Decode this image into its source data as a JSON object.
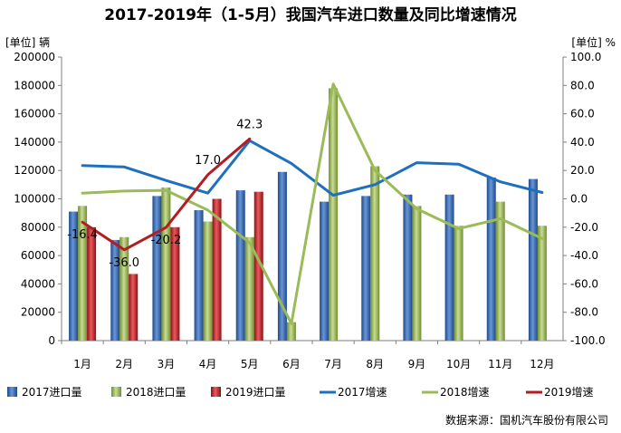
{
  "title": "2017-2019年（1-5月）我国汽车进口数量及同比增速情况",
  "unit_left": "[单位] 辆",
  "unit_right": "[单位] %",
  "source": "数据来源：国机汽车股份有限公司",
  "colors": {
    "bar2017": "#2f5fa8",
    "bar2018": "#9bbb59",
    "bar2019": "#c0191f",
    "line2017": "#1f6fbf",
    "line2018": "#9bbb59",
    "line2019": "#b01e23",
    "grid": "#d9d9d9"
  },
  "chart_data": {
    "type": "bar",
    "title": "2017-2019年（1-5月）我国汽车进口数量及同比增速情况",
    "categories": [
      "1月",
      "2月",
      "3月",
      "4月",
      "5月",
      "6月",
      "7月",
      "8月",
      "9月",
      "10月",
      "11月",
      "12月"
    ],
    "ylim": [
      0,
      200000
    ],
    "yticks": [
      "0",
      "20000",
      "40000",
      "60000",
      "80000",
      "100000",
      "120000",
      "140000",
      "160000",
      "180000",
      "200000"
    ],
    "y2lim": [
      -100,
      100
    ],
    "y2ticks": [
      "-100.0",
      "-80.0",
      "-60.0",
      "-40.0",
      "-20.0",
      "0.0",
      "20.0",
      "40.0",
      "60.0",
      "80.0",
      "100.0"
    ],
    "series": [
      {
        "name": "2017进口量",
        "type": "bar",
        "axis": "left",
        "values": [
          91000,
          71000,
          102000,
          92000,
          106000,
          119000,
          98000,
          102000,
          103000,
          103000,
          115000,
          114000
        ]
      },
      {
        "name": "2018进口量",
        "type": "bar",
        "axis": "left",
        "values": [
          95000,
          73000,
          108000,
          84000,
          73000,
          13000,
          178000,
          123000,
          95000,
          81000,
          98000,
          81000
        ]
      },
      {
        "name": "2019进口量",
        "type": "bar",
        "axis": "left",
        "values": [
          80000,
          47000,
          80000,
          100000,
          105000,
          null,
          null,
          null,
          null,
          null,
          null,
          null
        ]
      },
      {
        "name": "2017增速",
        "type": "line",
        "axis": "right",
        "values": [
          23.5,
          22.5,
          13.0,
          4.0,
          41.0,
          25.0,
          2.5,
          10.0,
          25.5,
          24.5,
          12.0,
          4.5
        ]
      },
      {
        "name": "2018增速",
        "type": "line",
        "axis": "right",
        "values": [
          4.0,
          5.5,
          6.0,
          -8.0,
          -31.0,
          -88.0,
          81.0,
          20.0,
          -7.0,
          -21.0,
          -14.0,
          -28.0
        ]
      },
      {
        "name": "2019增速",
        "type": "line",
        "axis": "right",
        "values": [
          -16.4,
          -36.0,
          -20.2,
          17.0,
          42.3,
          null,
          null,
          null,
          null,
          null,
          null,
          null
        ]
      }
    ],
    "data_labels": [
      {
        "series": "2019增速",
        "index": 0,
        "text": "-16.4"
      },
      {
        "series": "2019增速",
        "index": 1,
        "text": "-36.0"
      },
      {
        "series": "2019增速",
        "index": 2,
        "text": "-20.2"
      },
      {
        "series": "2019增速",
        "index": 3,
        "text": "17.0"
      },
      {
        "series": "2019增速",
        "index": 4,
        "text": "42.3"
      }
    ],
    "legend": [
      "2017进口量",
      "2018进口量",
      "2019进口量",
      "2017增速",
      "2018增速",
      "2019增速"
    ],
    "legend_position": "bottom",
    "grid": false
  }
}
